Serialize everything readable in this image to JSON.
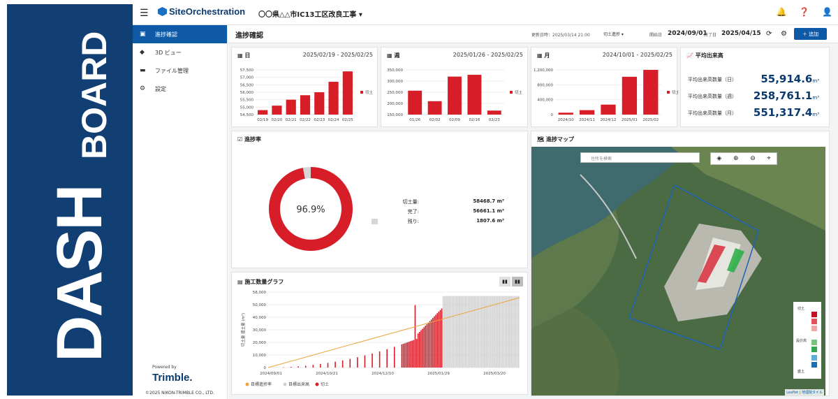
{
  "banner": {
    "line1": "DASH",
    "line2": "BOARD"
  },
  "topbar": {
    "logo": "SiteOrchestration",
    "project": "〇〇県△△市IC13工区改良工事"
  },
  "sidebar": {
    "items": [
      {
        "label": "進捗確認",
        "icon": "monitor-icon",
        "active": true
      },
      {
        "label": "3D ビュー",
        "icon": "cube-icon",
        "active": false
      },
      {
        "label": "ファイル管理",
        "icon": "folder-icon",
        "active": false
      },
      {
        "label": "設定",
        "icon": "gear-icon",
        "active": false
      }
    ],
    "powered_by": "Powered by",
    "brand": "Trimble.",
    "copyright": "©2025 NIKON-TRIMBLE CO., LTD."
  },
  "header": {
    "title": "進捗確認",
    "updated": "更新日時：2025/03/14 21:00",
    "mode": "切土進捗",
    "start_label": "開始日",
    "start_value": "2024/09/01",
    "end_label": "終了日",
    "end_value": "2025/04/15",
    "add_label": "追加"
  },
  "daily": {
    "title": "日",
    "range": "2025/02/19 - 2025/02/25",
    "legend": "切土",
    "chart_data": {
      "type": "bar",
      "categories": [
        "02/19",
        "02/20",
        "02/21",
        "02/22",
        "02/23",
        "02/24",
        "02/25"
      ],
      "values": [
        54800,
        55100,
        55500,
        55800,
        56000,
        56700,
        57400
      ],
      "ylim": [
        54500,
        57500
      ],
      "yticks": [
        "57,500",
        "57,000",
        "56,500",
        "56,000",
        "55,500",
        "55,000",
        "54,500"
      ]
    }
  },
  "weekly": {
    "title": "週",
    "range": "2025/01/26 - 2025/02/25",
    "legend": "切土",
    "chart_data": {
      "type": "bar",
      "categories": [
        "01/26",
        "02/02",
        "02/09",
        "02/16",
        "02/23"
      ],
      "values": [
        257000,
        210000,
        320000,
        328000,
        168000
      ],
      "ylim": [
        150000,
        350000
      ],
      "yticks": [
        "350,000",
        "300,000",
        "250,000",
        "200,000",
        "150,000"
      ]
    }
  },
  "monthly": {
    "title": "月",
    "range": "2024/10/01 - 2025/02/25",
    "legend": "切土",
    "chart_data": {
      "type": "bar",
      "categories": [
        "2024/10",
        "2024/11",
        "2024/12",
        "2025/01",
        "2025/02"
      ],
      "values": [
        55000,
        130000,
        290000,
        1100000,
        1300000
      ],
      "ylim": [
        0,
        1300000
      ],
      "yticks": [
        "1,200,000",
        "800,000",
        "400,000",
        "0"
      ]
    }
  },
  "average": {
    "title": "平均出来高",
    "rows": [
      {
        "label": "平均出来高数量（日）",
        "value": "55,914.6",
        "unit": "m³"
      },
      {
        "label": "平均出来高数量（週）",
        "value": "258,761.1",
        "unit": "m³"
      },
      {
        "label": "平均出来高数量（月）",
        "value": "551,317.4",
        "unit": "m³"
      }
    ]
  },
  "progress": {
    "title": "進捗率",
    "percent_text": "96.9%",
    "percent": 96.9,
    "stats": [
      {
        "label": "切土量:",
        "value": "58468.7 m³"
      },
      {
        "label": "完了:",
        "value": "56661.1 m³"
      },
      {
        "label": "残り:",
        "value": "1807.6 m³"
      }
    ],
    "colors": {
      "done": "#d71e28",
      "remain": "#d5d5d5"
    }
  },
  "graph": {
    "title": "施工数量グラフ",
    "ylabel": "切土量 盛土量 (m³)",
    "legend": [
      "目標進捗率",
      "目標出来高",
      "切土"
    ],
    "yticks": [
      "58,000",
      "50,000",
      "40,000",
      "30,000",
      "20,000",
      "10,000",
      "0"
    ],
    "xticks": [
      "2024/09/01",
      "2024/10/21",
      "2024/12/10",
      "2025/01/29",
      "2025/03/20"
    ],
    "chart_data": {
      "type": "bar",
      "ylim": [
        0,
        58000
      ],
      "note_target_line": [
        0,
        58000
      ]
    }
  },
  "map": {
    "title": "進捗マップ",
    "search_placeholder": "住所を検索",
    "legend_cut": "切土",
    "legend_design": "設計高",
    "legend_fill": "盛土",
    "attribution": "Leaflet | 地理院タイル"
  }
}
